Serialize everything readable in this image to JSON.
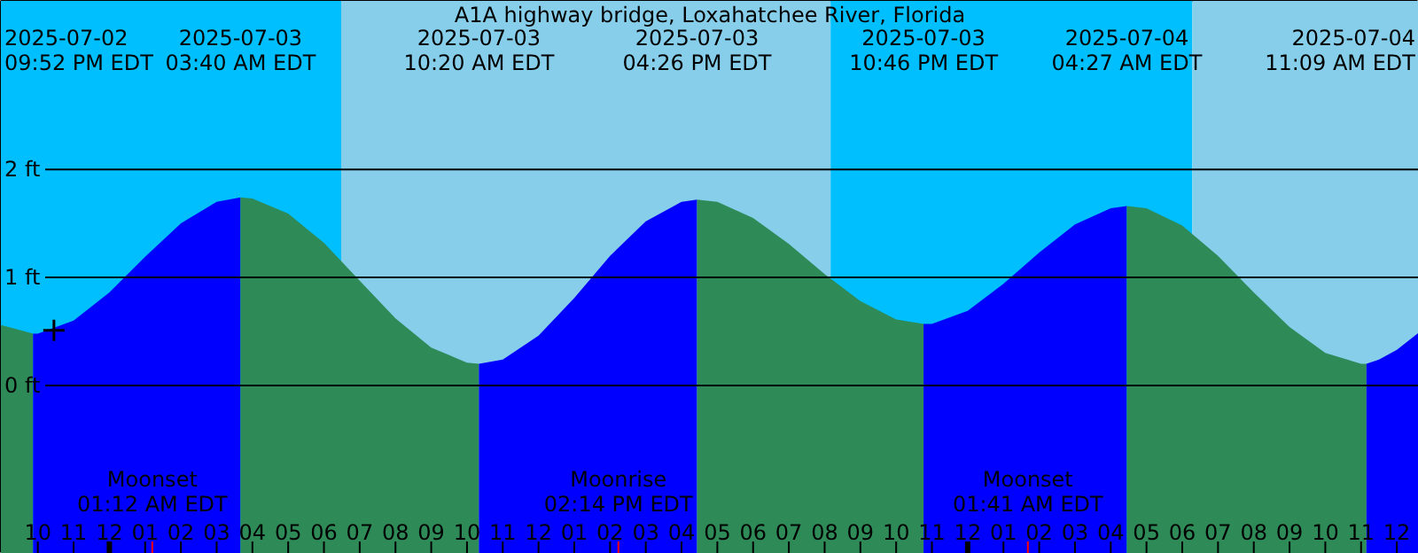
{
  "chart_data": {
    "type": "area",
    "title": "A1A highway bridge, Loxahatchee River, Florida",
    "xlim": [
      "2025-07-02T20:58",
      "2025-07-04T12:37"
    ],
    "ylim": [
      -1.56,
      3.56
    ],
    "xticks": [
      {
        "value": "2025-07-02T22:00",
        "label": "10"
      },
      {
        "value": "2025-07-02T23:00",
        "label": "11"
      },
      {
        "value": "2025-07-03T00:00",
        "label": "12"
      },
      {
        "value": "2025-07-03T01:00",
        "label": "01"
      },
      {
        "value": "2025-07-03T02:00",
        "label": "02"
      },
      {
        "value": "2025-07-03T03:00",
        "label": "03"
      },
      {
        "value": "2025-07-03T04:00",
        "label": "04"
      },
      {
        "value": "2025-07-03T05:00",
        "label": "05"
      },
      {
        "value": "2025-07-03T06:00",
        "label": "06"
      },
      {
        "value": "2025-07-03T07:00",
        "label": "07"
      },
      {
        "value": "2025-07-03T08:00",
        "label": "08"
      },
      {
        "value": "2025-07-03T09:00",
        "label": "09"
      },
      {
        "value": "2025-07-03T10:00",
        "label": "10"
      },
      {
        "value": "2025-07-03T11:00",
        "label": "11"
      },
      {
        "value": "2025-07-03T12:00",
        "label": "12"
      },
      {
        "value": "2025-07-03T13:00",
        "label": "01"
      },
      {
        "value": "2025-07-03T14:00",
        "label": "02"
      },
      {
        "value": "2025-07-03T15:00",
        "label": "03"
      },
      {
        "value": "2025-07-03T16:00",
        "label": "04"
      },
      {
        "value": "2025-07-03T17:00",
        "label": "05"
      },
      {
        "value": "2025-07-03T18:00",
        "label": "06"
      },
      {
        "value": "2025-07-03T19:00",
        "label": "07"
      },
      {
        "value": "2025-07-03T20:00",
        "label": "08"
      },
      {
        "value": "2025-07-03T21:00",
        "label": "09"
      },
      {
        "value": "2025-07-03T22:00",
        "label": "10"
      },
      {
        "value": "2025-07-03T23:00",
        "label": "11"
      },
      {
        "value": "2025-07-04T00:00",
        "label": "12"
      },
      {
        "value": "2025-07-04T01:00",
        "label": "01"
      },
      {
        "value": "2025-07-04T02:00",
        "label": "02"
      },
      {
        "value": "2025-07-04T03:00",
        "label": "03"
      },
      {
        "value": "2025-07-04T04:00",
        "label": "04"
      },
      {
        "value": "2025-07-04T05:00",
        "label": "05"
      },
      {
        "value": "2025-07-04T06:00",
        "label": "06"
      },
      {
        "value": "2025-07-04T07:00",
        "label": "07"
      },
      {
        "value": "2025-07-04T08:00",
        "label": "08"
      },
      {
        "value": "2025-07-04T09:00",
        "label": "09"
      },
      {
        "value": "2025-07-04T10:00",
        "label": "10"
      },
      {
        "value": "2025-07-04T11:00",
        "label": "11"
      },
      {
        "value": "2025-07-04T12:00",
        "label": "12"
      }
    ],
    "yticks": [
      {
        "value": 0,
        "label": "0 ft"
      },
      {
        "value": 1,
        "label": "1 ft"
      },
      {
        "value": 2,
        "label": "2 ft"
      }
    ],
    "grid": "y",
    "series": [
      {
        "color": "#2e8b57",
        "x": [
          "2025-07-02T20:58",
          "2025-07-02T21:25",
          "2025-07-02T21:52"
        ],
        "values": [
          0.56,
          0.52,
          0.48
        ]
      },
      {
        "color": "#0000ff",
        "x": [
          "2025-07-02T21:52",
          "2025-07-02T22:00",
          "2025-07-02T23:00",
          "2025-07-03T00:00",
          "2025-07-03T01:00",
          "2025-07-03T02:00",
          "2025-07-03T03:00",
          "2025-07-03T03:40"
        ],
        "values": [
          0.48,
          0.48,
          0.6,
          0.86,
          1.19,
          1.5,
          1.7,
          1.74
        ]
      },
      {
        "color": "#2e8b57",
        "x": [
          "2025-07-03T03:40",
          "2025-07-03T04:00",
          "2025-07-03T05:00",
          "2025-07-03T06:00",
          "2025-07-03T07:00",
          "2025-07-03T08:00",
          "2025-07-03T09:00",
          "2025-07-03T10:00",
          "2025-07-03T10:20"
        ],
        "values": [
          1.74,
          1.73,
          1.59,
          1.32,
          0.97,
          0.62,
          0.35,
          0.21,
          0.2
        ]
      },
      {
        "color": "#0000ff",
        "x": [
          "2025-07-03T10:20",
          "2025-07-03T11:00",
          "2025-07-03T12:00",
          "2025-07-03T13:00",
          "2025-07-03T14:00",
          "2025-07-03T15:00",
          "2025-07-03T16:00",
          "2025-07-03T16:26"
        ],
        "values": [
          0.2,
          0.24,
          0.46,
          0.81,
          1.2,
          1.52,
          1.7,
          1.72
        ]
      },
      {
        "color": "#2e8b57",
        "x": [
          "2025-07-03T16:26",
          "2025-07-03T17:00",
          "2025-07-03T18:00",
          "2025-07-03T19:00",
          "2025-07-03T20:00",
          "2025-07-03T21:00",
          "2025-07-03T22:00",
          "2025-07-03T22:46"
        ],
        "values": [
          1.72,
          1.7,
          1.55,
          1.31,
          1.03,
          0.78,
          0.61,
          0.57
        ]
      },
      {
        "color": "#0000ff",
        "x": [
          "2025-07-03T22:46",
          "2025-07-03T23:00",
          "2025-07-04T00:00",
          "2025-07-04T01:00",
          "2025-07-04T02:00",
          "2025-07-04T03:00",
          "2025-07-04T04:00",
          "2025-07-04T04:27"
        ],
        "values": [
          0.57,
          0.57,
          0.69,
          0.94,
          1.23,
          1.49,
          1.64,
          1.66
        ]
      },
      {
        "color": "#2e8b57",
        "x": [
          "2025-07-04T04:27",
          "2025-07-04T05:00",
          "2025-07-04T06:00",
          "2025-07-04T07:00",
          "2025-07-04T08:00",
          "2025-07-04T09:00",
          "2025-07-04T10:00",
          "2025-07-04T11:00",
          "2025-07-04T11:09"
        ],
        "values": [
          1.66,
          1.64,
          1.48,
          1.2,
          0.86,
          0.54,
          0.3,
          0.2,
          0.2
        ]
      },
      {
        "color": "#0000ff",
        "x": [
          "2025-07-04T11:09",
          "2025-07-04T11:30",
          "2025-07-04T12:00",
          "2025-07-04T12:37"
        ],
        "values": [
          0.2,
          0.24,
          0.33,
          0.49
        ]
      },
      {
        "type": "scatter",
        "marker": "cross",
        "color": "#000000",
        "x": [
          "2025-07-02T22:27"
        ],
        "values": [
          0.51
        ]
      }
    ],
    "bands": [
      {
        "axis": "x",
        "from": "2025-07-02T20:58",
        "to": "2025-07-03T06:29",
        "color": "#00bfff"
      },
      {
        "axis": "x",
        "from": "2025-07-03T06:29",
        "to": "2025-07-03T20:10",
        "color": "#87ceeb"
      },
      {
        "axis": "x",
        "from": "2025-07-03T20:10",
        "to": "2025-07-04T06:17",
        "color": "#00bfff"
      },
      {
        "axis": "x",
        "from": "2025-07-04T06:17",
        "to": "2025-07-04T12:37",
        "color": "#87ceeb"
      }
    ],
    "ref_lines": [
      {
        "axis": "x",
        "value": "2025-07-03T01:12",
        "label": "Moonset\n01:12 AM EDT",
        "color": "#ff0000"
      },
      {
        "axis": "x",
        "value": "2025-07-03T14:14",
        "label": "Moonrise\n02:14 PM EDT",
        "color": "#ff0000"
      },
      {
        "axis": "x",
        "value": "2025-07-04T01:41",
        "label": "Moonset\n01:41 AM EDT",
        "color": "#ff0000"
      }
    ],
    "annotations": [
      "2025-07-02\n09:52 PM EDT",
      "2025-07-03\n03:40 AM EDT",
      "2025-07-03\n10:20 AM EDT",
      "2025-07-03\n04:26 PM EDT",
      "2025-07-03\n10:46 PM EDT",
      "2025-07-04\n04:27 AM EDT",
      "2025-07-04\n11:09 AM EDT"
    ]
  }
}
